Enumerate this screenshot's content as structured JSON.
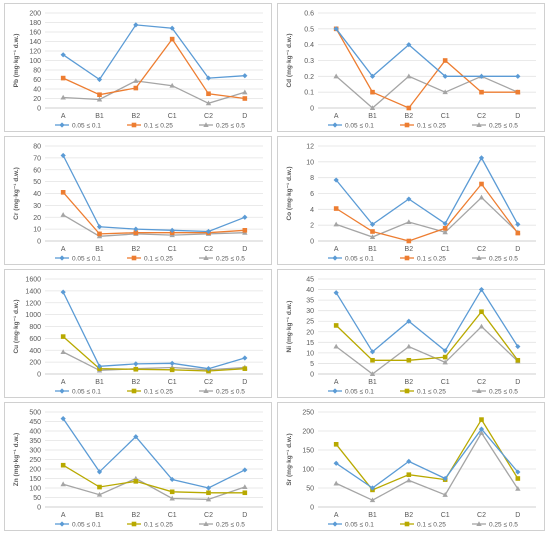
{
  "legend_labels": [
    "0.05 ≤ 0.1",
    "0.1 ≤ 0.25",
    "0.25 ≤ 0.5"
  ],
  "charts": [
    {
      "id": "pb",
      "series_colors": [
        "#5b9bd5",
        "#ed7d31",
        "#a5a5a5"
      ],
      "chart_data": {
        "type": "line",
        "ylabel": "Pb (mg·kg⁻¹ d.w.)",
        "categories": [
          "A",
          "B1",
          "B2",
          "C1",
          "C2",
          "D"
        ],
        "ylim": [
          0,
          200
        ],
        "yticks": [
          "0",
          "20",
          "40",
          "60",
          "80",
          "100",
          "120",
          "140",
          "160",
          "180",
          "200"
        ],
        "series": [
          {
            "name": "0.05 ≤ 0.1",
            "values": [
              112,
              60,
              175,
              168,
              63,
              68
            ]
          },
          {
            "name": "0.1 ≤ 0.25",
            "values": [
              63,
              28,
              42,
              145,
              30,
              20
            ]
          },
          {
            "name": "0.25 ≤ 0.5",
            "values": [
              22,
              18,
              57,
              47,
              10,
              33
            ]
          }
        ]
      }
    },
    {
      "id": "cd",
      "series_colors": [
        "#5b9bd5",
        "#ed7d31",
        "#a5a5a5"
      ],
      "chart_data": {
        "type": "line",
        "ylabel": "Cd (mg·kg⁻¹ d.w.)",
        "categories": [
          "A",
          "B1",
          "B2",
          "C1",
          "C2",
          "D"
        ],
        "ylim": [
          0,
          0.6
        ],
        "yticks": [
          "0",
          "0.1",
          "0.2",
          "0.3",
          "0.4",
          "0.5",
          "0.6"
        ],
        "series": [
          {
            "name": "0.05 ≤ 0.1",
            "values": [
              0.5,
              0.2,
              0.4,
              0.2,
              0.2,
              0.2
            ]
          },
          {
            "name": "0.1 ≤ 0.25",
            "values": [
              0.5,
              0.1,
              0.0,
              0.3,
              0.1,
              0.1
            ]
          },
          {
            "name": "0.25 ≤ 0.5",
            "values": [
              0.2,
              0.0,
              0.2,
              0.1,
              0.2,
              0.1
            ]
          }
        ]
      }
    },
    {
      "id": "cr",
      "series_colors": [
        "#5b9bd5",
        "#ed7d31",
        "#a5a5a5"
      ],
      "chart_data": {
        "type": "line",
        "ylabel": "Cr (mg·kg⁻¹ d.w.)",
        "categories": [
          "A",
          "B1",
          "B2",
          "C1",
          "C2",
          "D"
        ],
        "ylim": [
          0,
          80
        ],
        "yticks": [
          "0",
          "10",
          "20",
          "30",
          "40",
          "50",
          "60",
          "70",
          "80"
        ],
        "series": [
          {
            "name": "0.05 ≤ 0.1",
            "values": [
              72,
              12,
              10,
              9,
              8,
              20
            ]
          },
          {
            "name": "0.1 ≤ 0.25",
            "values": [
              41,
              6,
              7,
              7,
              7,
              9
            ]
          },
          {
            "name": "0.25 ≤ 0.5",
            "values": [
              22,
              4,
              6,
              5,
              6,
              7
            ]
          }
        ]
      }
    },
    {
      "id": "co",
      "series_colors": [
        "#5b9bd5",
        "#ed7d31",
        "#a5a5a5"
      ],
      "chart_data": {
        "type": "line",
        "ylabel": "Co (mg·kg⁻¹ d.w.)",
        "categories": [
          "A",
          "B1",
          "B2",
          "C1",
          "C2",
          "D"
        ],
        "ylim": [
          0,
          12
        ],
        "yticks": [
          "0",
          "2",
          "4",
          "6",
          "8",
          "10",
          "12"
        ],
        "series": [
          {
            "name": "0.05 ≤ 0.1",
            "values": [
              7.7,
              2.1,
              5.3,
              2.2,
              10.5,
              2.1
            ]
          },
          {
            "name": "0.1 ≤ 0.25",
            "values": [
              4.1,
              1.2,
              0.0,
              1.6,
              7.2,
              1.0
            ]
          },
          {
            "name": "0.25 ≤ 0.5",
            "values": [
              2.1,
              0.5,
              2.4,
              1.1,
              5.5,
              1.1
            ]
          }
        ]
      }
    },
    {
      "id": "cu",
      "series_colors": [
        "#5b9bd5",
        "#b8a900",
        "#a5a5a5"
      ],
      "chart_data": {
        "type": "line",
        "ylabel": "Cu (mg·kg⁻¹ d.w.)",
        "categories": [
          "A",
          "B1",
          "B2",
          "C1",
          "C2",
          "D"
        ],
        "ylim": [
          0,
          1600
        ],
        "yticks": [
          "0",
          "200",
          "400",
          "600",
          "800",
          "1000",
          "1200",
          "1400",
          "1600"
        ],
        "series": [
          {
            "name": "0.05 ≤ 0.1",
            "values": [
              1380,
              130,
              170,
              180,
              90,
              270
            ]
          },
          {
            "name": "0.1 ≤ 0.25",
            "values": [
              630,
              90,
              80,
              70,
              50,
              90
            ]
          },
          {
            "name": "0.25 ≤ 0.5",
            "values": [
              370,
              60,
              90,
              110,
              70,
              110
            ]
          }
        ]
      }
    },
    {
      "id": "ni",
      "series_colors": [
        "#5b9bd5",
        "#b8a900",
        "#a5a5a5"
      ],
      "chart_data": {
        "type": "line",
        "ylabel": "Ni (mg·kg⁻¹ d.w.)",
        "categories": [
          "A",
          "B1",
          "B2",
          "C1",
          "C2",
          "D"
        ],
        "ylim": [
          0,
          45
        ],
        "yticks": [
          "0",
          "5",
          "10",
          "15",
          "20",
          "25",
          "30",
          "35",
          "40",
          "45"
        ],
        "series": [
          {
            "name": "0.05 ≤ 0.1",
            "values": [
              38.5,
              10.5,
              25,
              11,
              40,
              13
            ]
          },
          {
            "name": "0.1 ≤ 0.25",
            "values": [
              23,
              6.5,
              6.5,
              8,
              29.5,
              6.5
            ]
          },
          {
            "name": "0.25 ≤ 0.5",
            "values": [
              13,
              0,
              13,
              5.5,
              22.5,
              6
            ]
          }
        ]
      }
    },
    {
      "id": "zn",
      "series_colors": [
        "#5b9bd5",
        "#b8a900",
        "#a5a5a5"
      ],
      "chart_data": {
        "type": "line",
        "ylabel": "Zn (mg·kg⁻¹ d.w.)",
        "categories": [
          "A",
          "B1",
          "B2",
          "C1",
          "C2",
          "D"
        ],
        "ylim": [
          0,
          500
        ],
        "yticks": [
          "0",
          "50",
          "100",
          "150",
          "200",
          "250",
          "300",
          "350",
          "400",
          "450",
          "500"
        ],
        "series": [
          {
            "name": "0.05 ≤ 0.1",
            "values": [
              465,
              185,
              370,
              145,
              100,
              195
            ]
          },
          {
            "name": "0.1 ≤ 0.25",
            "values": [
              220,
              105,
              135,
              80,
              75,
              75
            ]
          },
          {
            "name": "0.25 ≤ 0.5",
            "values": [
              120,
              65,
              150,
              45,
              40,
              105
            ]
          }
        ]
      }
    },
    {
      "id": "sr",
      "series_colors": [
        "#5b9bd5",
        "#b8a900",
        "#a5a5a5"
      ],
      "chart_data": {
        "type": "line",
        "ylabel": "Sr (mg·kg⁻¹ d.w.)",
        "categories": [
          "A",
          "B1",
          "B2",
          "C1",
          "C2",
          "D"
        ],
        "ylim": [
          0,
          250
        ],
        "yticks": [
          "0",
          "50",
          "100",
          "150",
          "200",
          "250"
        ],
        "series": [
          {
            "name": "0.05 ≤ 0.1",
            "values": [
              115,
              50,
              120,
              75,
              205,
              92
            ]
          },
          {
            "name": "0.1 ≤ 0.25",
            "values": [
              165,
              45,
              85,
              72,
              230,
              75
            ]
          },
          {
            "name": "0.25 ≤ 0.5",
            "values": [
              62,
              18,
              70,
              32,
              195,
              48
            ]
          }
        ]
      }
    }
  ]
}
